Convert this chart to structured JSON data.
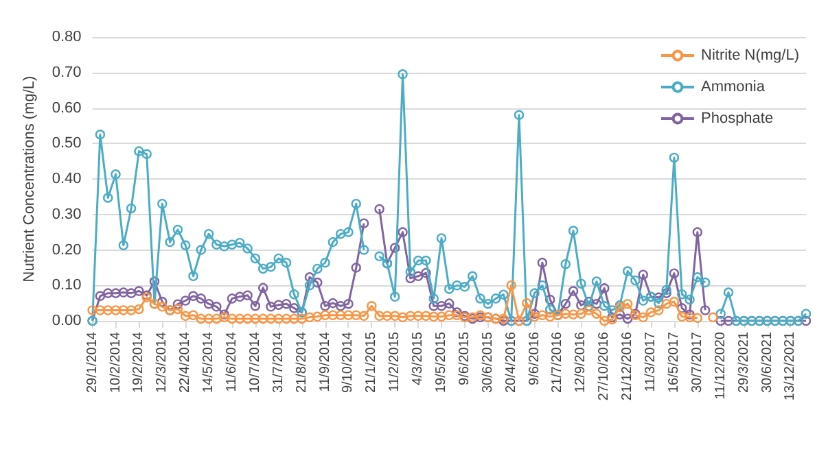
{
  "chart_data": {
    "type": "line",
    "ylabel": "Nutrient Concentrations (mg/L)",
    "categories": [
      "29/1/2014",
      null,
      null,
      "10/2/2014",
      null,
      null,
      "19/2/2014",
      null,
      null,
      "12/3/2014",
      null,
      null,
      "22/4/2014",
      null,
      null,
      "14/5/2014",
      null,
      null,
      "11/6/2014",
      null,
      null,
      "10/7/2014",
      null,
      null,
      "31/7/2014",
      null,
      null,
      "21/8/2014",
      null,
      null,
      "11/9/2014",
      null,
      null,
      "9/10/2014",
      null,
      null,
      "21/1/2015",
      null,
      null,
      "11/2/2015",
      null,
      null,
      "4/3/2015",
      null,
      null,
      "19/5/2015",
      null,
      null,
      "9/6/2015",
      null,
      null,
      "30/6/2015",
      null,
      null,
      "20/4/2016",
      null,
      null,
      "9/6/2016",
      null,
      null,
      "21/7/2016",
      null,
      null,
      "12/9/2016",
      null,
      null,
      "27/10/2016",
      null,
      null,
      "21/12/2016",
      null,
      null,
      "11/3/2017",
      null,
      null,
      "16/5/2017",
      null,
      null,
      "30/7/2017",
      null,
      null,
      "11/12/2020",
      null,
      null,
      "29/3/2021",
      null,
      null,
      "30/6/2021",
      null,
      null,
      "13/12/2021",
      null,
      null
    ],
    "series": [
      {
        "name": "Nitrite N(mg/L)",
        "color": "#f79646",
        "values": [
          0.03,
          0.03,
          0.03,
          0.03,
          0.03,
          0.03,
          0.033,
          0.066,
          0.048,
          0.04,
          0.03,
          0.033,
          0.014,
          0.016,
          0.006,
          0.006,
          0.006,
          0.01,
          0.006,
          0.006,
          0.006,
          0.006,
          0.006,
          0.006,
          0.006,
          0.006,
          0.006,
          0.006,
          0.01,
          0.012,
          0.016,
          0.016,
          0.016,
          0.016,
          0.016,
          0.014,
          0.042,
          0.014,
          0.014,
          0.014,
          0.01,
          0.014,
          0.014,
          0.014,
          0.012,
          0.012,
          0.016,
          0.016,
          0.01,
          0.01,
          0.016,
          0.01,
          0.006,
          0.006,
          0.1,
          0,
          0.05,
          0.012,
          0.016,
          0.012,
          0.016,
          0.02,
          0.018,
          0.02,
          0.03,
          0.02,
          0,
          0.004,
          0.038,
          0.048,
          0.016,
          0.01,
          0.024,
          0.03,
          0.048,
          0.054,
          0.012,
          0.01,
          0.008,
          null,
          0.01,
          null,
          null,
          null,
          null,
          null,
          null,
          null,
          null,
          null,
          null,
          null,
          null
        ]
      },
      {
        "name": "Ammonia",
        "color": "#4bacc6",
        "values": [
          0,
          0.525,
          0.347,
          0.413,
          0.213,
          0.317,
          0.478,
          0.47,
          0.048,
          0.33,
          0.222,
          0.257,
          0.213,
          0.126,
          0.2,
          0.245,
          0.215,
          0.21,
          0.215,
          0.22,
          0.204,
          0.176,
          0.147,
          0.152,
          0.176,
          0.164,
          0.075,
          0.024,
          0.1,
          0.147,
          0.164,
          0.222,
          0.245,
          0.25,
          0.33,
          0.2,
          null,
          0.182,
          0.162,
          0.068,
          0.695,
          0.138,
          0.17,
          0.17,
          0.063,
          0.233,
          0.09,
          0.1,
          0.096,
          0.126,
          0.063,
          0.048,
          0.063,
          0.074,
          0,
          0.58,
          0,
          0.078,
          0.1,
          0.032,
          0.016,
          0.16,
          0.254,
          0.105,
          0.042,
          0.111,
          0.042,
          0.03,
          0.044,
          0.14,
          0.114,
          0.057,
          0.068,
          0.05,
          0.087,
          0.46,
          0.075,
          0.06,
          0.123,
          0.108,
          null,
          0.02,
          0.08,
          0,
          0,
          0,
          0,
          0,
          0,
          0,
          0,
          0,
          0.02
        ]
      },
      {
        "name": "Phosphate",
        "color": "#8064a2",
        "values": [
          0,
          0.07,
          0.078,
          0.078,
          0.08,
          0.078,
          0.084,
          0.072,
          0.111,
          0.054,
          0.03,
          0.047,
          0.057,
          0.07,
          0.063,
          0.048,
          0.04,
          0.018,
          0.063,
          0.068,
          0.072,
          0.042,
          0.093,
          0.04,
          0.045,
          0.048,
          0.036,
          0.024,
          0.123,
          0.108,
          0.042,
          0.05,
          0.042,
          0.048,
          0.15,
          0.275,
          null,
          0.315,
          0.162,
          0.206,
          0.25,
          0.12,
          0.126,
          0.135,
          0.042,
          0.042,
          0.049,
          0.024,
          0.014,
          0.006,
          0.01,
          0.01,
          0.006,
          0,
          0,
          0,
          0,
          0.02,
          0.164,
          0.06,
          0.016,
          0.048,
          0.084,
          0.044,
          0.054,
          0.048,
          0.092,
          0.01,
          0.018,
          0.006,
          0.02,
          0.13,
          0.068,
          0.066,
          0.078,
          0.134,
          0.036,
          0.018,
          0.25,
          0.03,
          null,
          0,
          0,
          0,
          0,
          0,
          0,
          0,
          0,
          0,
          0,
          0,
          0
        ]
      }
    ],
    "ylim": [
      0,
      0.8
    ],
    "yticks": [
      {
        "value": 0,
        "label": "0.00"
      },
      {
        "value": 0.1,
        "label": "0.10"
      },
      {
        "value": 0.2,
        "label": "0.20"
      },
      {
        "value": 0.3,
        "label": "0.30"
      },
      {
        "value": 0.4,
        "label": "0.40"
      },
      {
        "value": 0.5,
        "label": "0.50"
      },
      {
        "value": 0.6,
        "label": "0.60"
      },
      {
        "value": 0.7,
        "label": "0.70"
      },
      {
        "value": 0.8,
        "label": "0.80"
      }
    ],
    "grid": "y",
    "legend": "top right",
    "marker": "circle",
    "line_style": "solid"
  }
}
